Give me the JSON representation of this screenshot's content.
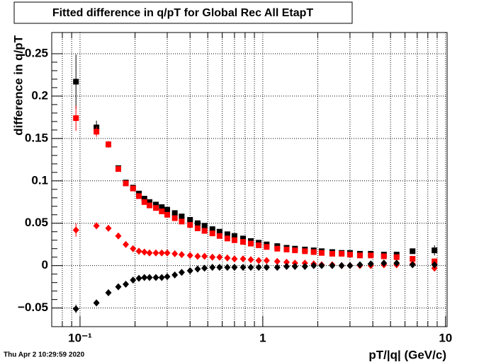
{
  "chart_data": {
    "type": "scatter",
    "title": "Fitted difference in q/pT  for Global Rec All EtapT",
    "x_label": "pT/|q| (GeV/c)",
    "y_label": "difference in q/pT",
    "timestamp": "Thu Apr  2 10:29:59 2020",
    "log_x": true,
    "grid": true,
    "xlim": [
      0.07,
      10.2
    ],
    "ylim": [
      -0.072,
      0.275
    ],
    "xticks": [
      {
        "value": 0.1,
        "label": "10⁻¹"
      },
      1,
      10
    ],
    "yticks": [
      {
        "value": -0.05,
        "label": "−0.05"
      },
      0,
      0.05,
      0.1,
      0.15,
      0.2,
      0.25
    ],
    "x": [
      0.095,
      0.123,
      0.143,
      0.162,
      0.178,
      0.195,
      0.21,
      0.225,
      0.24,
      0.26,
      0.28,
      0.3,
      0.33,
      0.36,
      0.4,
      0.44,
      0.48,
      0.53,
      0.58,
      0.64,
      0.7,
      0.78,
      0.86,
      0.95,
      1.05,
      1.2,
      1.35,
      1.5,
      1.7,
      1.9,
      2.1,
      2.4,
      2.7,
      3.0,
      3.4,
      3.9,
      4.6,
      5.4,
      6.6,
      8.7
    ],
    "series": [
      {
        "color": "#000000",
        "marker": "square",
        "values": [
          0.217,
          0.163,
          0.143,
          0.115,
          0.098,
          0.092,
          0.085,
          0.079,
          0.075,
          0.072,
          0.069,
          0.066,
          0.062,
          0.058,
          0.054,
          0.05,
          0.047,
          0.043,
          0.04,
          0.037,
          0.035,
          0.032,
          0.029,
          0.027,
          0.025,
          0.023,
          0.021,
          0.02,
          0.019,
          0.018,
          0.017,
          0.016,
          0.015,
          0.015,
          0.014,
          0.014,
          0.013,
          0.013,
          0.017,
          0.018
        ],
        "errors": [
          0.032,
          0.008,
          0.004,
          0.003,
          0.002,
          0.002,
          0.002,
          0.001,
          0.001,
          0.001,
          0.001,
          0.001,
          0.001,
          0.001,
          0.001,
          0.001,
          0.001,
          0.001,
          0.001,
          0.001,
          0.001,
          0.001,
          0.001,
          0.001,
          0.001,
          0.001,
          0.001,
          0.001,
          0.001,
          0.001,
          0.001,
          0.001,
          0.001,
          0.001,
          0.001,
          0.001,
          0.002,
          0.002,
          0.003,
          0.006
        ]
      },
      {
        "color": "#ff0000",
        "marker": "square",
        "values": [
          0.174,
          0.158,
          0.143,
          0.114,
          0.097,
          0.091,
          0.082,
          0.075,
          0.071,
          0.068,
          0.064,
          0.06,
          0.056,
          0.052,
          0.048,
          0.044,
          0.041,
          0.038,
          0.035,
          0.032,
          0.03,
          0.028,
          0.026,
          0.024,
          0.022,
          0.02,
          0.019,
          0.018,
          0.017,
          0.016,
          0.015,
          0.014,
          0.014,
          0.013,
          0.012,
          0.012,
          0.011,
          0.01,
          0.008,
          0.005
        ],
        "errors": [
          0.015,
          0.006,
          0.004,
          0.003,
          0.002,
          0.002,
          0.002,
          0.001,
          0.001,
          0.001,
          0.001,
          0.001,
          0.001,
          0.001,
          0.001,
          0.001,
          0.001,
          0.001,
          0.001,
          0.001,
          0.001,
          0.001,
          0.001,
          0.001,
          0.001,
          0.001,
          0.001,
          0.001,
          0.001,
          0.001,
          0.001,
          0.001,
          0.001,
          0.001,
          0.001,
          0.001,
          0.001,
          0.002,
          0.002,
          0.003
        ]
      },
      {
        "color": "#ff0000",
        "marker": "diamond",
        "values": [
          0.042,
          0.047,
          0.044,
          0.035,
          0.025,
          0.02,
          0.017,
          0.016,
          0.015,
          0.015,
          0.015,
          0.015,
          0.014,
          0.013,
          0.012,
          0.011,
          0.011,
          0.01,
          0.01,
          0.009,
          0.008,
          0.008,
          0.007,
          0.006,
          0.006,
          0.005,
          0.004,
          0.003,
          0.003,
          0.002,
          0.001,
          0.001,
          0,
          0,
          0,
          0,
          0.001,
          0.001,
          0.002,
          -0.003
        ],
        "errors": [
          0.008,
          0.004,
          0.003,
          0.002,
          0.002,
          0.001,
          0.001,
          0.001,
          0.001,
          0.001,
          0.001,
          0.001,
          0.001,
          0.001,
          0.001,
          0.001,
          0.001,
          0.001,
          0.001,
          0.001,
          0.001,
          0.001,
          0.001,
          0.001,
          0.001,
          0.001,
          0.001,
          0.001,
          0.001,
          0.001,
          0.001,
          0.001,
          0.001,
          0.001,
          0.001,
          0.001,
          0.001,
          0.001,
          0.001,
          0.002
        ]
      },
      {
        "color": "#000000",
        "marker": "diamond",
        "values": [
          -0.051,
          -0.044,
          -0.032,
          -0.025,
          -0.022,
          -0.017,
          -0.015,
          -0.014,
          -0.014,
          -0.014,
          -0.014,
          -0.013,
          -0.011,
          -0.008,
          -0.006,
          -0.004,
          -0.003,
          -0.002,
          -0.002,
          -0.002,
          -0.002,
          -0.002,
          -0.002,
          -0.002,
          -0.002,
          -0.002,
          -0.001,
          -0.001,
          -0.001,
          0,
          0,
          0,
          0,
          0,
          0.001,
          0.002,
          0.003,
          0.003,
          0.001,
          0.001
        ],
        "errors": [
          0.005,
          0.003,
          0.002,
          0.002,
          0.001,
          0.001,
          0.001,
          0.001,
          0.001,
          0.001,
          0.001,
          0.001,
          0.001,
          0.001,
          0.001,
          0.001,
          0.001,
          0.001,
          0.001,
          0.001,
          0.001,
          0.001,
          0.001,
          0.001,
          0.001,
          0.001,
          0.001,
          0.001,
          0.001,
          0.001,
          0.001,
          0.001,
          0.001,
          0.001,
          0.001,
          0.001,
          0.001,
          0.001,
          0.001,
          0.002
        ]
      }
    ]
  }
}
